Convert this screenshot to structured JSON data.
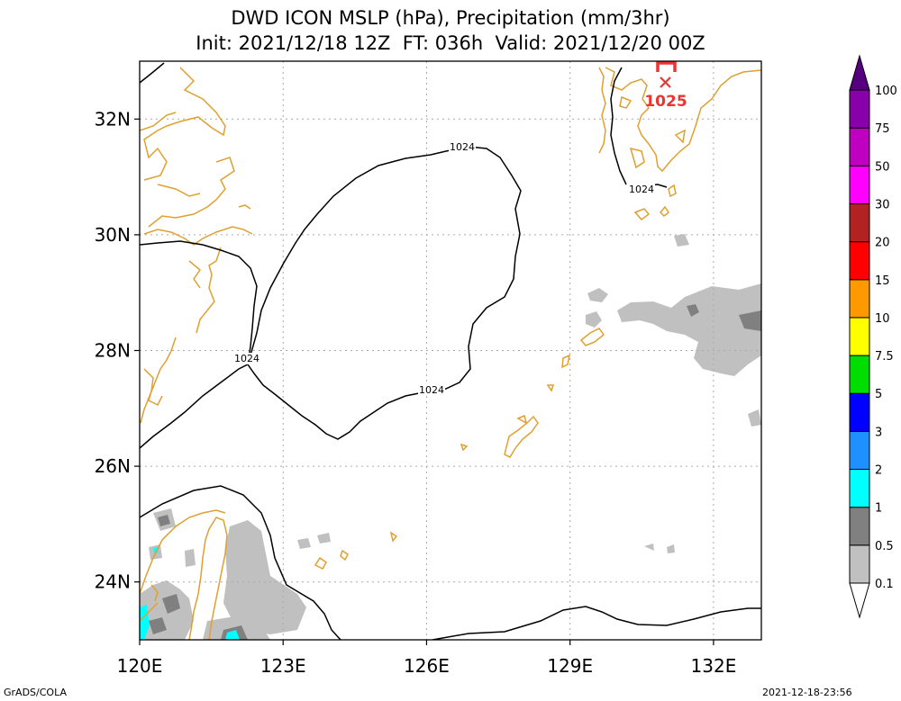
{
  "title": {
    "line1": "DWD ICON MSLP (hPa), Precipitation (mm/3hr)",
    "line2": "Init: 2021/12/18 12Z  FT: 036h  Valid: 2021/12/20 00Z"
  },
  "axes": {
    "lon_range": [
      120,
      133
    ],
    "lat_range": [
      23,
      33
    ],
    "lon_ticks": [
      {
        "value": 120,
        "label": "120E"
      },
      {
        "value": 123,
        "label": "123E"
      },
      {
        "value": 126,
        "label": "126E"
      },
      {
        "value": 129,
        "label": "129E"
      },
      {
        "value": 132,
        "label": "132E"
      }
    ],
    "lat_ticks": [
      {
        "value": 24,
        "label": "24N"
      },
      {
        "value": 26,
        "label": "26N"
      },
      {
        "value": 28,
        "label": "28N"
      },
      {
        "value": 30,
        "label": "30N"
      },
      {
        "value": 32,
        "label": "32N"
      }
    ]
  },
  "isobars": [
    {
      "value": 1024,
      "label": "1024"
    }
  ],
  "pressure_center": {
    "type": "H",
    "value": "1025",
    "lon": 131.0,
    "lat": 32.6,
    "color": "#ee3333"
  },
  "colorbar": {
    "levels": [
      "0.1",
      "0.5",
      "1",
      "2",
      "3",
      "5",
      "7.5",
      "10",
      "15",
      "20",
      "30",
      "50",
      "75",
      "100"
    ],
    "colors": [
      "#ffffff",
      "#c0c0c0",
      "#808080",
      "#00ffff",
      "#1e90ff",
      "#0000ff",
      "#00dd00",
      "#ffff00",
      "#ff9900",
      "#ff0000",
      "#b22222",
      "#ff00ff",
      "#c000c0",
      "#8800aa",
      "#55007f"
    ]
  },
  "colors": {
    "coastline": "#e0a030",
    "isobar": "#000000",
    "grid": "#aaaaaa",
    "precip_light": "#c0c0c0",
    "precip_mid": "#808080"
  },
  "footer": {
    "left": "GrADS/COLA",
    "right": "2021-12-18-23:56"
  }
}
